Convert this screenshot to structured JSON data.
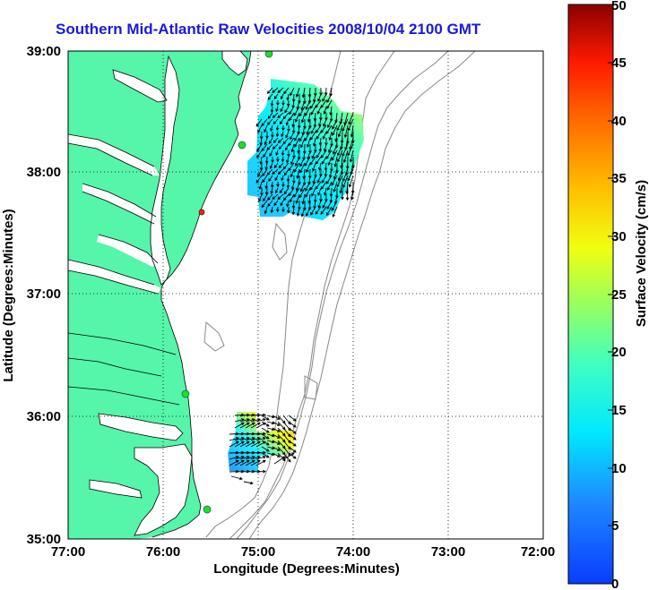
{
  "title": "Southern Mid-Atlantic Raw Velocities 2008/10/04 2100 GMT",
  "xaxis": {
    "label": "Longitude (Degrees:Minutes)",
    "ticks": [
      "77:00",
      "76:00",
      "75:00",
      "74:00",
      "73:00",
      "72:00"
    ]
  },
  "yaxis": {
    "label": "Latitude (Degrees:Minutes)",
    "ticks": [
      "35:00",
      "36:00",
      "37:00",
      "38:00",
      "39:00"
    ]
  },
  "colorbar": {
    "label": "Surface Velocity (cm/s)",
    "ticks": [
      "0",
      "5",
      "10",
      "15",
      "20",
      "25",
      "30",
      "35",
      "40",
      "45",
      "50"
    ],
    "range": [
      0,
      50
    ]
  },
  "colors": {
    "land": "#55f5aa",
    "title": "#1a1ad8",
    "station_active": "#22dd22",
    "station_inactive": "#ee2222",
    "bathymetry": "#888888"
  }
}
